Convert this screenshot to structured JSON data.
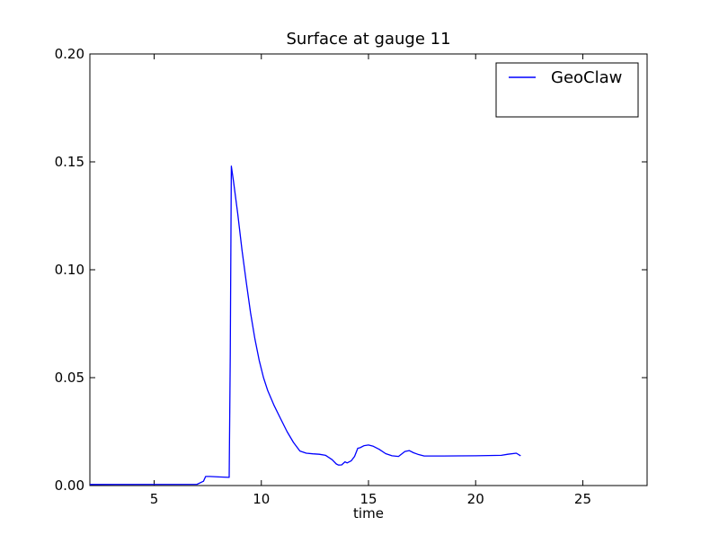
{
  "chart_data": {
    "type": "line",
    "title": "Surface at gauge 11",
    "xlabel": "time",
    "ylabel": "",
    "xlim": [
      2,
      28
    ],
    "ylim": [
      0,
      0.2
    ],
    "xticks": [
      5,
      10,
      15,
      20,
      25
    ],
    "xtick_labels": [
      "5",
      "10",
      "15",
      "20",
      "25"
    ],
    "yticks": [
      0.0,
      0.05,
      0.1,
      0.15,
      0.2
    ],
    "ytick_labels": [
      "0.00",
      "0.05",
      "0.10",
      "0.15",
      "0.20"
    ],
    "grid": false,
    "legend_position": "top-right",
    "series": [
      {
        "name": "GeoClaw",
        "color": "#0000ff",
        "x": [
          2.0,
          7.0,
          7.3,
          7.4,
          7.6,
          8.0,
          8.5,
          8.55,
          8.6,
          8.7,
          8.9,
          9.1,
          9.3,
          9.5,
          9.7,
          9.9,
          10.1,
          10.3,
          10.6,
          10.9,
          11.2,
          11.5,
          11.8,
          12.1,
          12.4,
          12.7,
          13.0,
          13.3,
          13.5,
          13.6,
          13.75,
          13.9,
          14.0,
          14.2,
          14.35,
          14.5,
          14.6,
          14.8,
          15.0,
          15.2,
          15.5,
          15.8,
          16.1,
          16.4,
          16.7,
          16.9,
          17.1,
          17.3,
          17.6,
          18.5,
          20.0,
          21.2,
          21.5,
          21.9,
          22.1
        ],
        "y": [
          0.0005,
          0.0006,
          0.002,
          0.0042,
          0.0042,
          0.004,
          0.0038,
          0.06,
          0.148,
          0.141,
          0.126,
          0.109,
          0.094,
          0.08,
          0.068,
          0.058,
          0.05,
          0.044,
          0.037,
          0.031,
          0.025,
          0.02,
          0.016,
          0.015,
          0.0147,
          0.0145,
          0.014,
          0.012,
          0.01,
          0.0095,
          0.0096,
          0.011,
          0.0105,
          0.0115,
          0.0135,
          0.0173,
          0.0175,
          0.0185,
          0.0188,
          0.0183,
          0.0168,
          0.0148,
          0.0138,
          0.0135,
          0.0158,
          0.0162,
          0.0152,
          0.0145,
          0.0137,
          0.0137,
          0.0138,
          0.014,
          0.0145,
          0.015,
          0.0138
        ]
      }
    ]
  }
}
